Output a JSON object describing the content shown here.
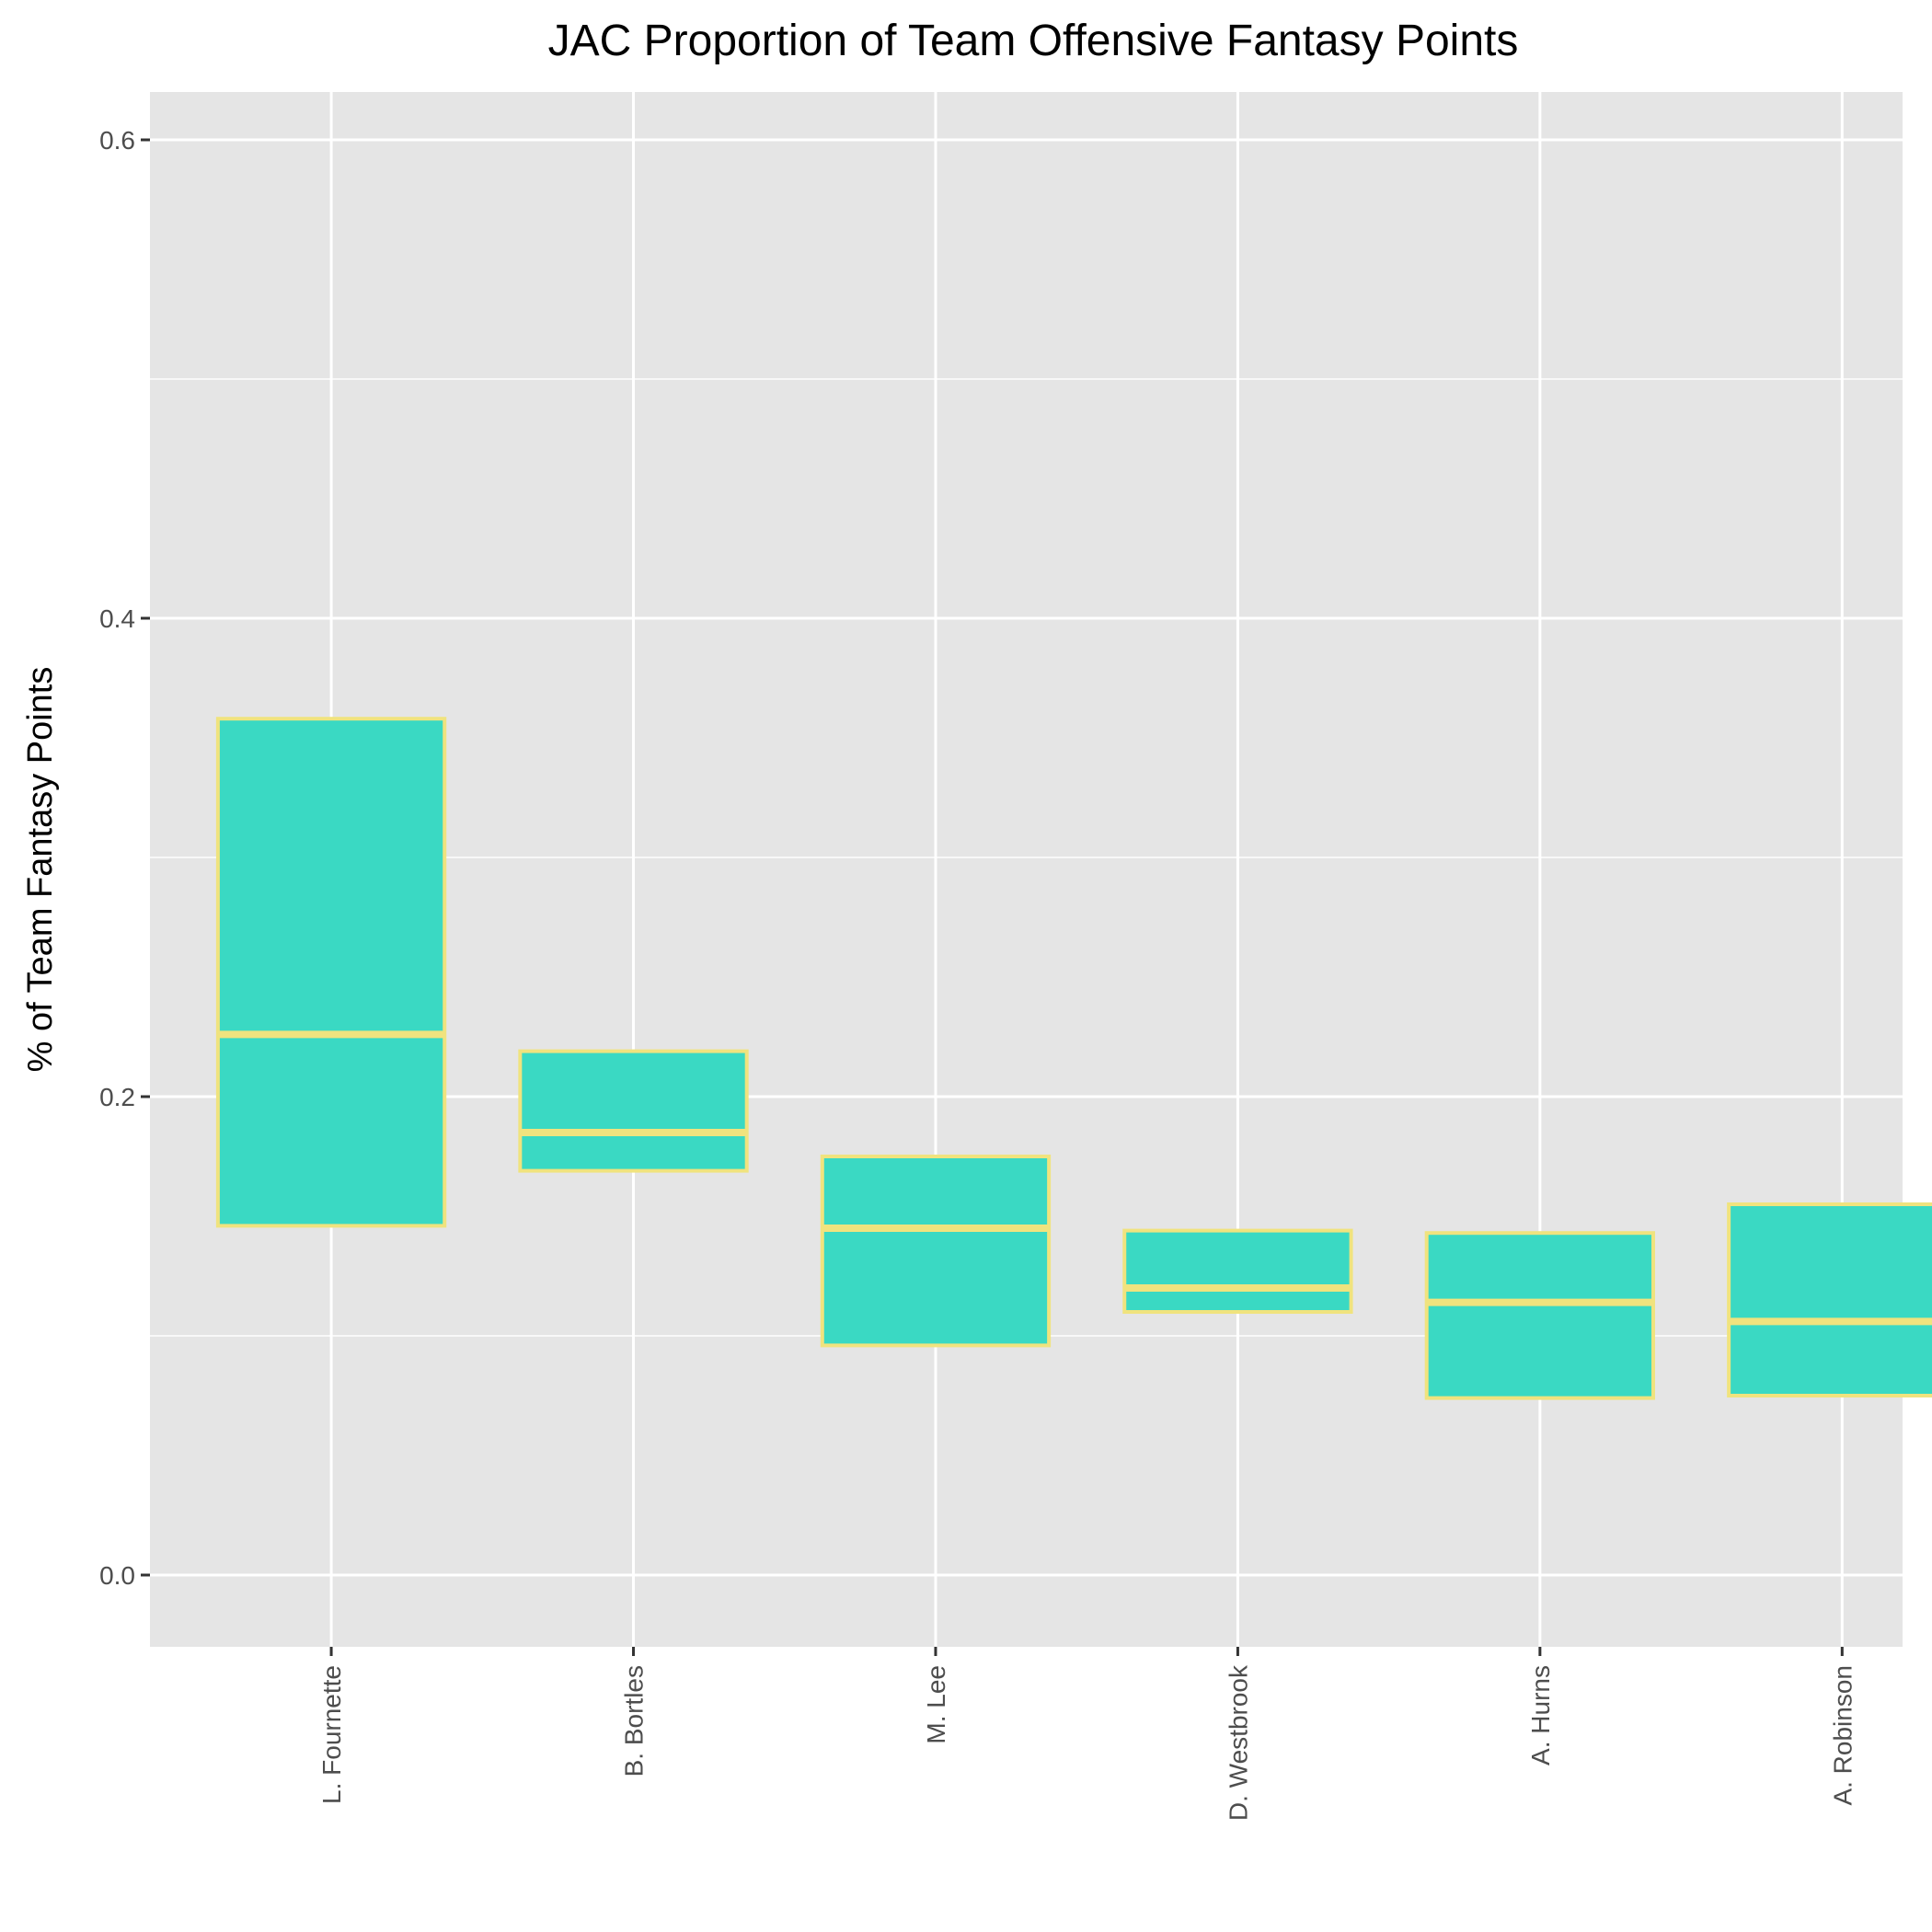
{
  "chart_data": {
    "type": "boxplot",
    "title": "JAC Proportion of Team Offensive Fantasy Points",
    "xlabel": "",
    "ylabel": "% of Team Fantasy Points",
    "ylim": [
      -0.03,
      0.62
    ],
    "yticks": [
      0.0,
      0.2,
      0.4,
      0.6
    ],
    "ytick_labels": [
      "0.0",
      "0.2",
      "0.4",
      "0.6"
    ],
    "grid": true,
    "categories": [
      "L. Fournette",
      "B. Bortles",
      "M. Lee",
      "D. Westbrook",
      "A. Hurns",
      "A. Robinson"
    ],
    "boxes": [
      {
        "name": "L. Fournette",
        "q1": 0.146,
        "median": 0.226,
        "q3": 0.358
      },
      {
        "name": "B. Bortles",
        "q1": 0.169,
        "median": 0.185,
        "q3": 0.219
      },
      {
        "name": "M. Lee",
        "q1": 0.096,
        "median": 0.145,
        "q3": 0.175
      },
      {
        "name": "D. Westbrook",
        "q1": 0.11,
        "median": 0.12,
        "q3": 0.144
      },
      {
        "name": "A. Hurns",
        "q1": 0.074,
        "median": 0.114,
        "q3": 0.143
      },
      {
        "name": "A. Robinson",
        "q1": 0.075,
        "median": 0.106,
        "q3": 0.155
      }
    ],
    "colors": {
      "panel": "#e5e5e5",
      "grid": "#ffffff",
      "box_fill": "#3ad9c3",
      "box_outline": "#f0e37e",
      "tick": "#333333"
    }
  }
}
